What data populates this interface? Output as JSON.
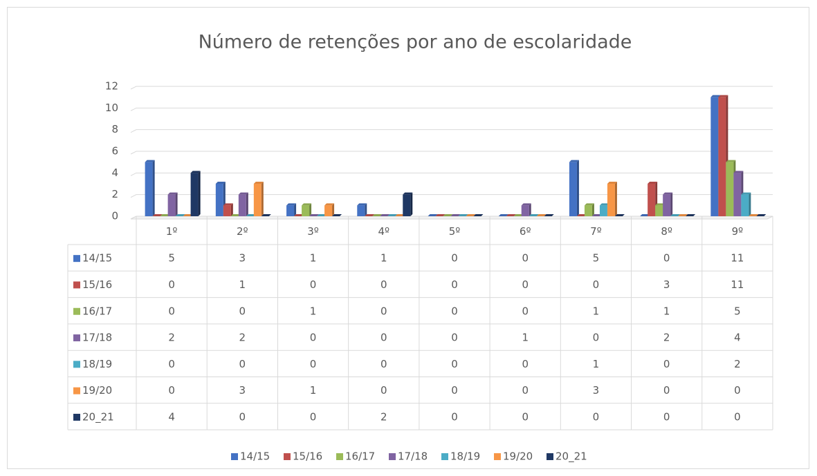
{
  "chart_data": {
    "type": "bar",
    "title": "Número de retenções por ano de escolaridade",
    "categories": [
      "1º",
      "2º",
      "3º",
      "4º",
      "5º",
      "6º",
      "7º",
      "8º",
      "9º"
    ],
    "series": [
      {
        "name": "14/15",
        "color": "#4472c4",
        "values": [
          5,
          3,
          1,
          1,
          0,
          0,
          5,
          0,
          11
        ]
      },
      {
        "name": "15/16",
        "color": "#c0504d",
        "values": [
          0,
          1,
          0,
          0,
          0,
          0,
          0,
          3,
          11
        ]
      },
      {
        "name": "16/17",
        "color": "#9bbb59",
        "values": [
          0,
          0,
          1,
          0,
          0,
          0,
          1,
          1,
          5
        ]
      },
      {
        "name": "17/18",
        "color": "#8064a2",
        "values": [
          2,
          2,
          0,
          0,
          0,
          1,
          0,
          2,
          4
        ]
      },
      {
        "name": "18/19",
        "color": "#4bacc6",
        "values": [
          0,
          0,
          0,
          0,
          0,
          0,
          1,
          0,
          2
        ]
      },
      {
        "name": "19/20",
        "color": "#f79646",
        "values": [
          0,
          3,
          1,
          0,
          0,
          0,
          3,
          0,
          0
        ]
      },
      {
        "name": "20_21",
        "color": "#1f3864",
        "values": [
          4,
          0,
          0,
          2,
          0,
          0,
          0,
          0,
          0
        ]
      }
    ],
    "ylim": [
      0,
      12
    ],
    "yticks": [
      0,
      2,
      4,
      6,
      8,
      10,
      12
    ],
    "grid": true,
    "legend": "bottom",
    "data_table": true
  }
}
